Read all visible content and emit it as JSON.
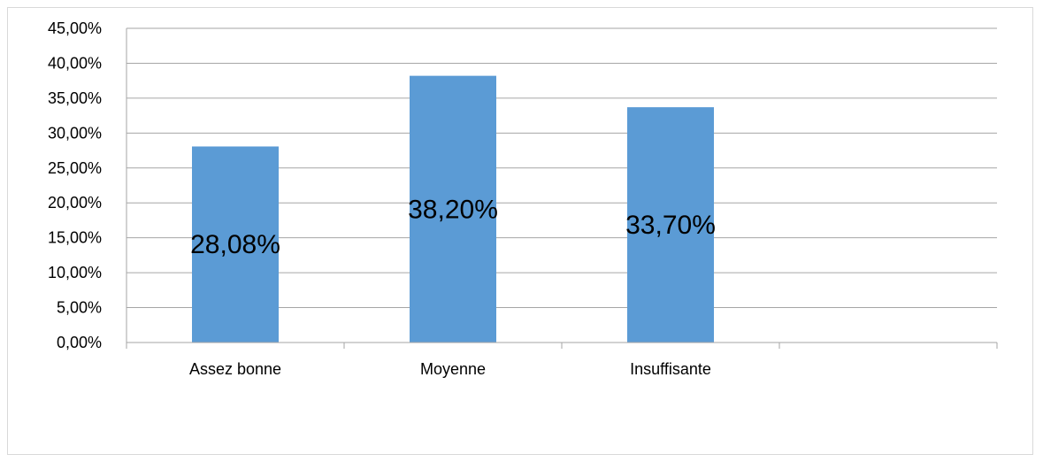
{
  "chart_data": {
    "type": "bar",
    "categories": [
      "Assez bonne",
      "Moyenne",
      "Insuffisante",
      ""
    ],
    "values": [
      28.08,
      38.2,
      33.7,
      null
    ],
    "data_labels": [
      "28,08%",
      "38,20%",
      "33,70%",
      ""
    ],
    "y_ticks": [
      "0,00%",
      "5,00%",
      "10,00%",
      "15,00%",
      "20,00%",
      "25,00%",
      "30,00%",
      "35,00%",
      "40,00%",
      "45,00%"
    ],
    "ylim": [
      0,
      45
    ],
    "title": "",
    "xlabel": "",
    "ylabel": "",
    "grid": true,
    "legend": "none",
    "colors": {
      "bar": "#5b9bd5",
      "grid": "#a6a6a6",
      "axis": "#a6a6a6"
    }
  }
}
